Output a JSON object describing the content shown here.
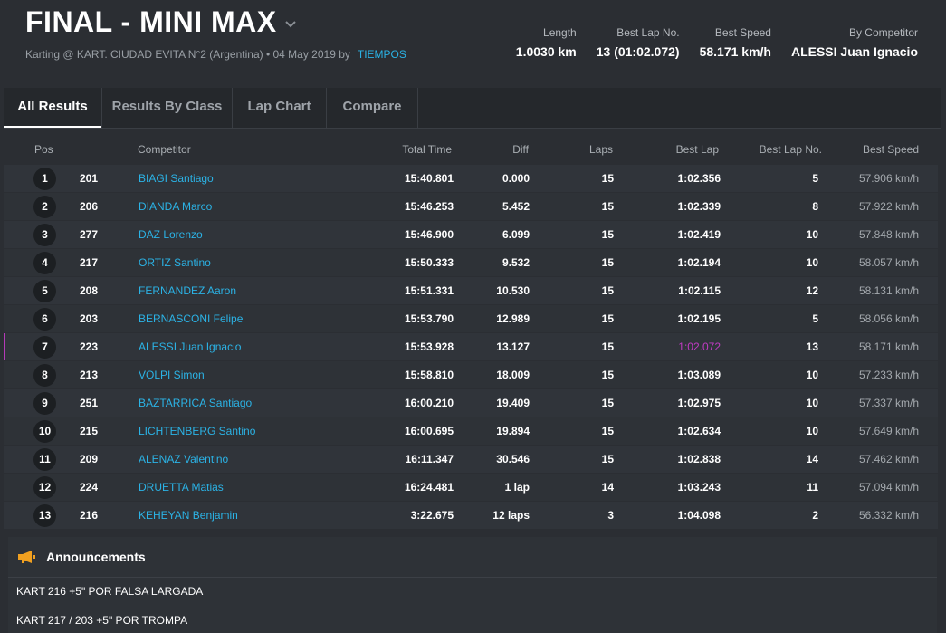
{
  "header": {
    "title": "FINAL - MINI MAX",
    "subtitle": "Karting @ KART. CIUDAD EVITA N°2 (Argentina) • 04 May 2019 by",
    "by_link": "TIEMPOS",
    "stats": [
      {
        "label": "Length",
        "value": "1.0030 km"
      },
      {
        "label": "Best Lap No.",
        "value": "13 (01:02.072)"
      },
      {
        "label": "Best Speed",
        "value": "58.171 km/h"
      },
      {
        "label": "By Competitor",
        "value": "ALESSI Juan Ignacio"
      }
    ]
  },
  "tabs": [
    "All Results",
    "Results By Class",
    "Lap Chart",
    "Compare"
  ],
  "table": {
    "headers": {
      "pos": "Pos",
      "competitor": "Competitor",
      "total_time": "Total Time",
      "diff": "Diff",
      "laps": "Laps",
      "best_lap": "Best Lap",
      "best_lap_no": "Best Lap No.",
      "best_speed": "Best Speed"
    },
    "rows": [
      {
        "pos": "1",
        "num": "201",
        "name": "BIAGI Santiago",
        "total": "15:40.801",
        "diff": "0.000",
        "laps": "15",
        "best": "1:02.356",
        "bestno": "5",
        "speed": "57.906 km/h"
      },
      {
        "pos": "2",
        "num": "206",
        "name": "DIANDA Marco",
        "total": "15:46.253",
        "diff": "5.452",
        "laps": "15",
        "best": "1:02.339",
        "bestno": "8",
        "speed": "57.922 km/h"
      },
      {
        "pos": "3",
        "num": "277",
        "name": "DAZ Lorenzo",
        "total": "15:46.900",
        "diff": "6.099",
        "laps": "15",
        "best": "1:02.419",
        "bestno": "10",
        "speed": "57.848 km/h"
      },
      {
        "pos": "4",
        "num": "217",
        "name": "ORTIZ Santino",
        "total": "15:50.333",
        "diff": "9.532",
        "laps": "15",
        "best": "1:02.194",
        "bestno": "10",
        "speed": "58.057 km/h"
      },
      {
        "pos": "5",
        "num": "208",
        "name": "FERNANDEZ Aaron",
        "total": "15:51.331",
        "diff": "10.530",
        "laps": "15",
        "best": "1:02.115",
        "bestno": "12",
        "speed": "58.131 km/h"
      },
      {
        "pos": "6",
        "num": "203",
        "name": "BERNASCONI Felipe",
        "total": "15:53.790",
        "diff": "12.989",
        "laps": "15",
        "best": "1:02.195",
        "bestno": "5",
        "speed": "58.056 km/h"
      },
      {
        "pos": "7",
        "num": "223",
        "name": "ALESSI Juan Ignacio",
        "total": "15:53.928",
        "diff": "13.127",
        "laps": "15",
        "best": "1:02.072",
        "bestno": "13",
        "speed": "58.171 km/h",
        "highlight": true
      },
      {
        "pos": "8",
        "num": "213",
        "name": "VOLPI Simon",
        "total": "15:58.810",
        "diff": "18.009",
        "laps": "15",
        "best": "1:03.089",
        "bestno": "10",
        "speed": "57.233 km/h"
      },
      {
        "pos": "9",
        "num": "251",
        "name": "BAZTARRICA Santiago",
        "total": "16:00.210",
        "diff": "19.409",
        "laps": "15",
        "best": "1:02.975",
        "bestno": "10",
        "speed": "57.337 km/h"
      },
      {
        "pos": "10",
        "num": "215",
        "name": "LICHTENBERG Santino",
        "total": "16:00.695",
        "diff": "19.894",
        "laps": "15",
        "best": "1:02.634",
        "bestno": "10",
        "speed": "57.649 km/h"
      },
      {
        "pos": "11",
        "num": "209",
        "name": "ALENAZ Valentino",
        "total": "16:11.347",
        "diff": "30.546",
        "laps": "15",
        "best": "1:02.838",
        "bestno": "14",
        "speed": "57.462 km/h"
      },
      {
        "pos": "12",
        "num": "224",
        "name": "DRUETTA Matias",
        "total": "16:24.481",
        "diff": "1 lap",
        "laps": "14",
        "best": "1:03.243",
        "bestno": "11",
        "speed": "57.094 km/h"
      },
      {
        "pos": "13",
        "num": "216",
        "name": "KEHEYAN Benjamin",
        "total": "3:22.675",
        "diff": "12 laps",
        "laps": "3",
        "best": "1:04.098",
        "bestno": "2",
        "speed": "56.332 km/h"
      }
    ]
  },
  "announcements": {
    "title": "Announcements",
    "items": [
      "KART 216 +5\" POR FALSA LARGADA",
      "KART 217 / 203 +5\" POR TROMPA"
    ]
  },
  "colors": {
    "accent": "#2bb3e6",
    "best_lap_highlight": "#c13bc4",
    "megaphone": "#f0a020"
  },
  "icons": {
    "title_dropdown": "chevron-down-icon",
    "announcements": "megaphone-icon"
  }
}
